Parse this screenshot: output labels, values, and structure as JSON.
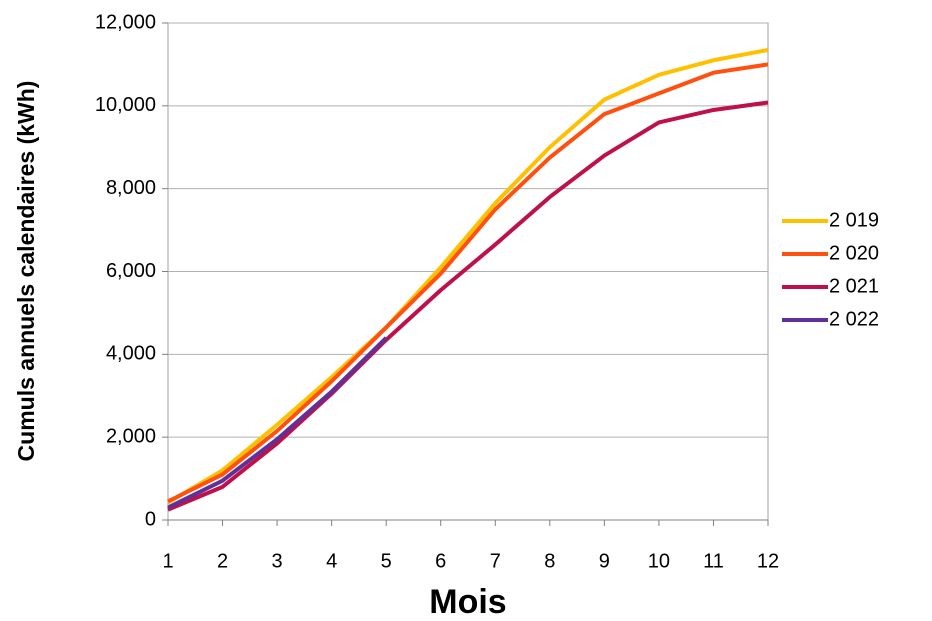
{
  "chart_data": {
    "type": "line",
    "x_label": "Mois",
    "y_label": "Cumuls annuels calendaires (kWh)",
    "x": [
      1,
      2,
      3,
      4,
      5,
      6,
      7,
      8,
      9,
      10,
      11,
      12
    ],
    "xlim": [
      1,
      12
    ],
    "xticks": [
      1,
      2,
      3,
      4,
      5,
      6,
      7,
      8,
      9,
      10,
      11,
      12
    ],
    "ylim": [
      0,
      12000
    ],
    "yticks": [
      0,
      {
        "value": 2000,
        "label": "2,000"
      },
      {
        "value": 4000,
        "label": "4,000"
      },
      {
        "value": 6000,
        "label": "6,000"
      },
      {
        "value": 8000,
        "label": "8,000"
      },
      {
        "value": 10000,
        "label": "10,000"
      },
      {
        "value": 12000,
        "label": "12,000"
      }
    ],
    "grid": true,
    "legend": "right",
    "series": [
      {
        "name": "2 019",
        "color": "#ffc000",
        "values": [
          420,
          1200,
          2300,
          3450,
          4650,
          6100,
          7650,
          9000,
          10150,
          10750,
          11100,
          11350
        ]
      },
      {
        "name": "2 020",
        "color": "#ff5010",
        "values": [
          450,
          1100,
          2150,
          3350,
          4650,
          5950,
          7500,
          8750,
          9800,
          10300,
          10800,
          11000
        ]
      },
      {
        "name": "2 021",
        "color": "#c0104a",
        "values": [
          250,
          800,
          1850,
          3050,
          4350,
          5550,
          6650,
          7800,
          8800,
          9600,
          9900,
          10080
        ]
      },
      {
        "name": "2 022",
        "color": "#603098",
        "values": [
          300,
          950,
          1950,
          3100,
          4400,
          null,
          null,
          null,
          null,
          null,
          null,
          null
        ]
      }
    ]
  }
}
